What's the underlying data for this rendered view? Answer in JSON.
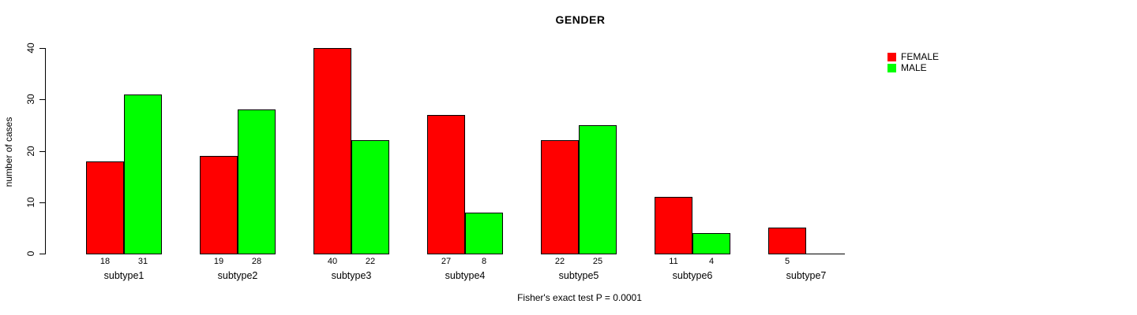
{
  "window": {
    "background": "#ffffff",
    "text_color": "#000000"
  },
  "chart_data": {
    "type": "bar",
    "title": "GENDER",
    "xlabel": "",
    "ylabel": "number of cases",
    "categories": [
      "subtype1",
      "subtype2",
      "subtype3",
      "subtype4",
      "subtype5",
      "subtype6",
      "subtype7"
    ],
    "series": [
      {
        "name": "FEMALE",
        "color": "#ff0000",
        "values": [
          18,
          19,
          40,
          27,
          22,
          11,
          5
        ]
      },
      {
        "name": "MALE",
        "color": "#00ff00",
        "values": [
          31,
          28,
          22,
          8,
          25,
          4,
          0
        ]
      }
    ],
    "ylim": [
      0,
      40
    ],
    "yticks": [
      0,
      10,
      20,
      30,
      40
    ],
    "bar_border_color": "#000000",
    "grid": false,
    "legend_position": "top-right",
    "show_value_labels": true,
    "zero_bars_drawn_as_line": true,
    "annotation": "Fisher's exact test P = 0.0001"
  }
}
